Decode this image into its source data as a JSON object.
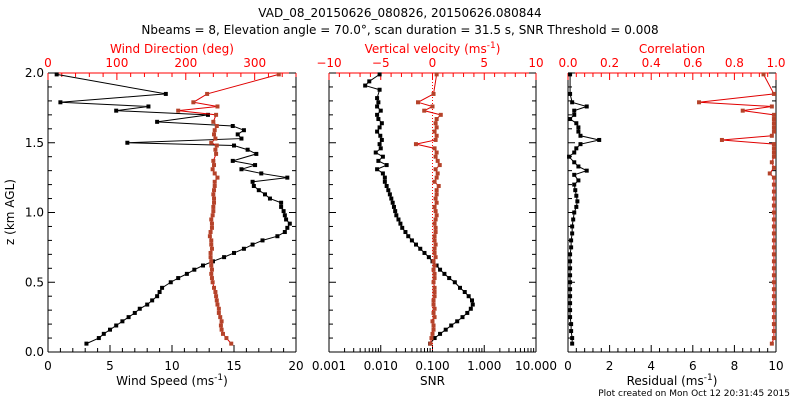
{
  "title": "VAD_08_20150626_080826, 20150626.080844",
  "subtitle": "Nbeams = 8, Elevation angle = 70.0°, scan duration = 31.5 s, SNR Threshold = 0.008",
  "footer": "Plot created on Mon Oct 12 20:31:45 2015",
  "colors": {
    "primary": "#000000",
    "secondary_axis": "#ff0000",
    "secondary_points": "#b5432a",
    "secondary_line": "#e00000"
  },
  "chart_data": [
    {
      "type": "line",
      "name": "wind",
      "ylabel": "z (km AGL)",
      "ylim": [
        0,
        2
      ],
      "yticks": [
        "0.0",
        "0.5",
        "1.0",
        "1.5",
        "2.0"
      ],
      "xlabel": "Wind Speed (ms",
      "xlabel_sup": "-1",
      "xlabel_end": ")",
      "xlim": [
        0,
        20
      ],
      "xticks": [
        "0",
        "5",
        "10",
        "15",
        "20"
      ],
      "top_label": "Wind Direction (deg)",
      "top_lim": [
        0,
        360
      ],
      "top_ticks": [
        "0",
        "100",
        "200",
        "300"
      ],
      "series": [
        {
          "name": "Wind Speed",
          "axis": "bottom",
          "color": "#000000",
          "z": [
            0.06,
            0.1,
            0.13,
            0.16,
            0.19,
            0.22,
            0.25,
            0.28,
            0.31,
            0.34,
            0.37,
            0.4,
            0.43,
            0.46,
            0.5,
            0.53,
            0.56,
            0.59,
            0.62,
            0.65,
            0.68,
            0.71,
            0.74,
            0.77,
            0.8,
            0.83,
            0.86,
            0.89,
            0.92,
            0.95,
            0.98,
            1.01,
            1.04,
            1.07,
            1.1,
            1.13,
            1.16,
            1.19,
            1.22,
            1.25,
            1.28,
            1.31,
            1.34,
            1.37,
            1.42,
            1.45,
            1.48,
            1.5,
            1.53,
            1.56,
            1.59,
            1.62,
            1.65,
            1.7,
            1.73,
            1.76,
            1.79,
            1.85,
            1.99
          ],
          "values": [
            3.1,
            4.1,
            4.5,
            5.0,
            5.5,
            6.0,
            6.5,
            7.0,
            7.4,
            8.0,
            8.4,
            8.8,
            9.0,
            9.2,
            9.9,
            10.5,
            11.2,
            11.8,
            12.5,
            13.3,
            14.2,
            15.0,
            15.8,
            16.5,
            17.3,
            18.5,
            19.1,
            19.3,
            19.5,
            19.2,
            19.1,
            19.0,
            18.8,
            18.8,
            17.9,
            17.5,
            17.0,
            16.6,
            16.5,
            19.3,
            17.2,
            15.6,
            16.7,
            14.9,
            16.8,
            16.1,
            15.0,
            6.4,
            15.6,
            15.3,
            15.8,
            14.9,
            8.8,
            12.9,
            5.5,
            8.1,
            1.0,
            9.5,
            0.7
          ]
        },
        {
          "name": "Wind Direction",
          "axis": "top",
          "color": "#b5432a",
          "z": [
            0.06,
            0.1,
            0.13,
            0.16,
            0.19,
            0.22,
            0.25,
            0.28,
            0.31,
            0.34,
            0.37,
            0.4,
            0.43,
            0.46,
            0.5,
            0.53,
            0.56,
            0.59,
            0.62,
            0.65,
            0.68,
            0.71,
            0.74,
            0.77,
            0.8,
            0.83,
            0.86,
            0.89,
            0.92,
            0.95,
            0.98,
            1.01,
            1.04,
            1.07,
            1.1,
            1.13,
            1.16,
            1.19,
            1.22,
            1.25,
            1.28,
            1.31,
            1.34,
            1.37,
            1.42,
            1.45,
            1.48,
            1.5,
            1.53,
            1.56,
            1.59,
            1.62,
            1.65,
            1.7,
            1.73,
            1.76,
            1.79,
            1.85,
            1.99
          ],
          "values": [
            266,
            259,
            254,
            252,
            251,
            252,
            250,
            248,
            248,
            246,
            245,
            244,
            243,
            241,
            239,
            238,
            237,
            238,
            237,
            237,
            236,
            236,
            238,
            237,
            237,
            235,
            236,
            238,
            238,
            237,
            239,
            240,
            240,
            241,
            241,
            240,
            241,
            242,
            242,
            246,
            242,
            239,
            241,
            240,
            244,
            243,
            245,
            237,
            243,
            241,
            242,
            245,
            240,
            244,
            189,
            246,
            211,
            231,
            335
          ]
        }
      ]
    },
    {
      "type": "line",
      "name": "snr",
      "ylim": [
        0,
        2
      ],
      "xlabel": "SNR",
      "xscale": "log",
      "xlim": [
        0.001,
        10
      ],
      "xticks": [
        "0.001",
        "0.010",
        "0.100",
        "1.000",
        "10.000"
      ],
      "top_label": "Vertical velocity (ms",
      "top_label_sup": "-1",
      "top_label_end": ")",
      "top_lim": [
        -10,
        10
      ],
      "top_ticks": [
        "−10",
        "−5",
        "0",
        "5",
        "10"
      ],
      "series": [
        {
          "name": "SNR",
          "axis": "bottom",
          "color": "#000000",
          "z": [
            0.06,
            0.1,
            0.13,
            0.16,
            0.19,
            0.22,
            0.25,
            0.28,
            0.31,
            0.34,
            0.37,
            0.4,
            0.43,
            0.46,
            0.5,
            0.53,
            0.56,
            0.59,
            0.62,
            0.65,
            0.68,
            0.71,
            0.74,
            0.77,
            0.8,
            0.83,
            0.86,
            0.89,
            0.92,
            0.95,
            0.98,
            1.01,
            1.04,
            1.07,
            1.1,
            1.13,
            1.16,
            1.19,
            1.22,
            1.25,
            1.28,
            1.31,
            1.34,
            1.37,
            1.4,
            1.43,
            1.46,
            1.49,
            1.52,
            1.55,
            1.58,
            1.61,
            1.64,
            1.67,
            1.7,
            1.73,
            1.76,
            1.79,
            1.82,
            1.88,
            1.91,
            1.94,
            1.99
          ],
          "values": [
            0.09,
            0.11,
            0.14,
            0.18,
            0.23,
            0.3,
            0.38,
            0.47,
            0.55,
            0.6,
            0.58,
            0.5,
            0.42,
            0.34,
            0.27,
            0.21,
            0.17,
            0.14,
            0.12,
            0.1,
            0.085,
            0.07,
            0.058,
            0.048,
            0.04,
            0.034,
            0.03,
            0.026,
            0.024,
            0.022,
            0.02,
            0.019,
            0.018,
            0.017,
            0.016,
            0.015,
            0.014,
            0.013,
            0.012,
            0.012,
            0.011,
            0.0085,
            0.013,
            0.009,
            0.011,
            0.008,
            0.01,
            0.0095,
            0.0105,
            0.0098,
            0.0085,
            0.0095,
            0.0105,
            0.009,
            0.0085,
            0.01,
            0.0085,
            0.009,
            0.0085,
            0.0095,
            0.005,
            0.006,
            0.0095
          ]
        },
        {
          "name": "Vertical velocity",
          "axis": "top",
          "color": "#b5432a",
          "z": [
            0.06,
            0.1,
            0.13,
            0.16,
            0.19,
            0.22,
            0.25,
            0.28,
            0.31,
            0.34,
            0.37,
            0.4,
            0.43,
            0.46,
            0.5,
            0.53,
            0.56,
            0.59,
            0.62,
            0.65,
            0.68,
            0.71,
            0.74,
            0.77,
            0.8,
            0.83,
            0.86,
            0.89,
            0.92,
            0.95,
            0.98,
            1.01,
            1.04,
            1.07,
            1.1,
            1.13,
            1.16,
            1.19,
            1.22,
            1.25,
            1.28,
            1.31,
            1.34,
            1.37,
            1.4,
            1.43,
            1.46,
            1.49,
            1.52,
            1.55,
            1.58,
            1.61,
            1.64,
            1.67,
            1.7,
            1.73,
            1.76,
            1.79,
            1.85,
            1.99
          ],
          "values": [
            -0.2,
            -0.1,
            0.0,
            0.1,
            0.1,
            0.0,
            0.2,
            0.1,
            0.2,
            0.1,
            0.1,
            0.2,
            0.2,
            0.2,
            0.1,
            0.2,
            0.2,
            0.1,
            0.2,
            0.1,
            0.3,
            0.2,
            0.2,
            0.3,
            0.2,
            0.2,
            0.3,
            0.3,
            0.2,
            0.3,
            0.4,
            0.3,
            0.2,
            0.4,
            0.3,
            0.4,
            0.4,
            0.6,
            0.2,
            0.4,
            0.5,
            0.3,
            0.7,
            0.5,
            0.3,
            0.4,
            0.2,
            -1.6,
            0.3,
            0.4,
            0.2,
            0.4,
            0.3,
            0.4,
            0.8,
            -0.8,
            0.0,
            -1.4,
            0.1,
            0.4
          ]
        }
      ]
    },
    {
      "type": "line",
      "name": "residual",
      "ylim": [
        0,
        2
      ],
      "xlabel": "Residual (ms",
      "xlabel_sup": "-1",
      "xlabel_end": ")",
      "xlim": [
        0,
        10
      ],
      "xticks": [
        "0",
        "2",
        "4",
        "6",
        "8",
        "10"
      ],
      "top_label": "Correlation",
      "top_lim": [
        0,
        1
      ],
      "top_ticks": [
        "0.0",
        "0.2",
        "0.4",
        "0.6",
        "0.8",
        "1.0"
      ],
      "series": [
        {
          "name": "Residual",
          "axis": "bottom",
          "color": "#000000",
          "z": [
            0.06,
            0.1,
            0.15,
            0.2,
            0.25,
            0.3,
            0.35,
            0.4,
            0.45,
            0.5,
            0.55,
            0.6,
            0.65,
            0.7,
            0.75,
            0.8,
            0.85,
            0.9,
            0.95,
            1.0,
            1.04,
            1.08,
            1.12,
            1.16,
            1.2,
            1.23,
            1.27,
            1.3,
            1.33,
            1.36,
            1.4,
            1.43,
            1.46,
            1.49,
            1.52,
            1.55,
            1.58,
            1.61,
            1.64,
            1.67,
            1.7,
            1.73,
            1.76,
            1.79,
            1.85,
            1.99
          ],
          "values": [
            0.2,
            0.2,
            0.15,
            0.15,
            0.1,
            0.1,
            0.1,
            0.1,
            0.1,
            0.1,
            0.1,
            0.1,
            0.1,
            0.1,
            0.15,
            0.15,
            0.2,
            0.2,
            0.25,
            0.3,
            0.4,
            0.45,
            0.4,
            0.35,
            0.3,
            0.5,
            0.3,
            0.9,
            0.5,
            0.3,
            0.05,
            0.3,
            0.4,
            0.6,
            1.5,
            0.6,
            0.5,
            0.5,
            0.4,
            0.1,
            0.3,
            0.3,
            0.9,
            0.2,
            0.1,
            0.1
          ]
        },
        {
          "name": "Correlation",
          "axis": "top",
          "color": "#b5432a",
          "z": [
            0.06,
            0.1,
            0.15,
            0.2,
            0.25,
            0.3,
            0.35,
            0.4,
            0.45,
            0.5,
            0.55,
            0.6,
            0.65,
            0.7,
            0.75,
            0.8,
            0.85,
            0.9,
            0.95,
            1.0,
            1.05,
            1.1,
            1.15,
            1.2,
            1.25,
            1.28,
            1.32,
            1.36,
            1.4,
            1.43,
            1.46,
            1.49,
            1.52,
            1.55,
            1.58,
            1.61,
            1.64,
            1.67,
            1.7,
            1.73,
            1.76,
            1.79,
            1.85,
            1.99
          ],
          "values": [
            0.98,
            0.99,
            0.99,
            0.99,
            0.99,
            0.99,
            0.99,
            0.99,
            0.99,
            0.99,
            0.99,
            0.99,
            0.99,
            0.99,
            0.99,
            0.99,
            0.99,
            0.99,
            0.99,
            0.99,
            0.99,
            0.99,
            0.99,
            0.99,
            0.99,
            0.97,
            0.99,
            0.98,
            0.99,
            0.99,
            0.99,
            0.99,
            0.74,
            0.98,
            0.99,
            0.99,
            0.99,
            0.99,
            0.99,
            0.84,
            0.98,
            0.63,
            0.99,
            0.94
          ]
        }
      ]
    }
  ]
}
